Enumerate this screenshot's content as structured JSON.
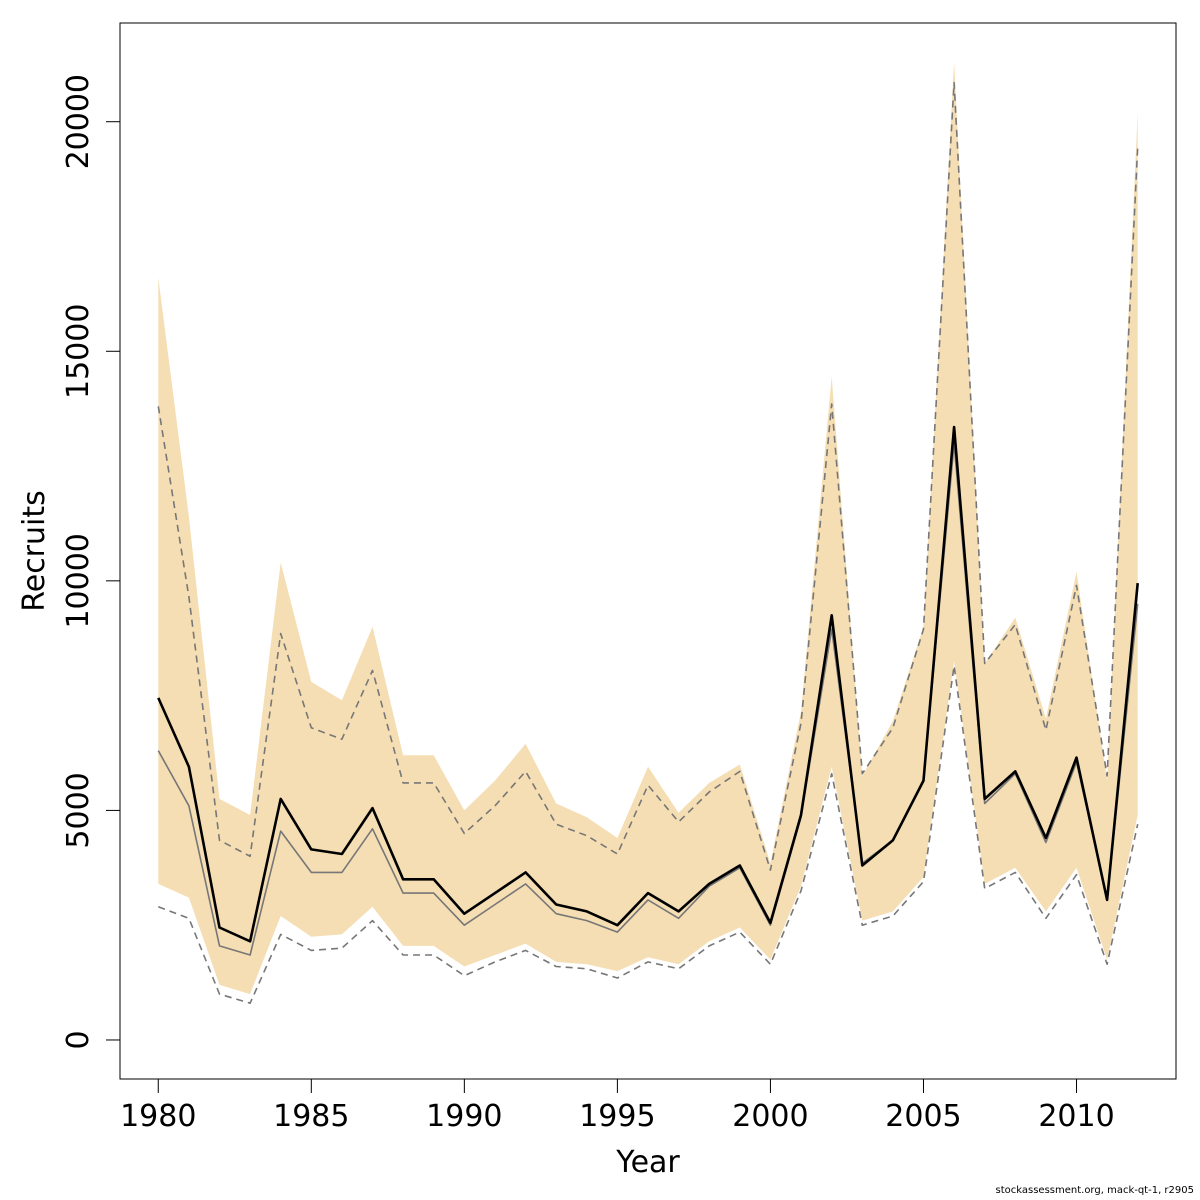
{
  "chart_data": {
    "type": "line",
    "xlabel": "Year",
    "ylabel": "Recruits",
    "xlim": [
      1978.75,
      2013.25
    ],
    "ylim": [
      -850,
      22150
    ],
    "x_ticks": [
      "1980",
      "1985",
      "1990",
      "1995",
      "2000",
      "2005",
      "2010"
    ],
    "y_ticks": [
      "0",
      "5000",
      "10000",
      "15000",
      "20000"
    ],
    "x": [
      1980,
      1981,
      1982,
      1983,
      1984,
      1985,
      1986,
      1987,
      1988,
      1989,
      1990,
      1991,
      1992,
      1993,
      1994,
      1995,
      1996,
      1997,
      1998,
      1999,
      2000,
      2001,
      2002,
      2003,
      2004,
      2005,
      2006,
      2007,
      2008,
      2009,
      2010,
      2011,
      2012
    ],
    "band": {
      "name": "confidence band",
      "upper": [
        16600,
        11400,
        5250,
        4900,
        10400,
        7800,
        7400,
        9000,
        6200,
        6200,
        5000,
        5650,
        6450,
        5150,
        4850,
        4400,
        5950,
        4950,
        5600,
        6000,
        3850,
        7150,
        14450,
        5750,
        6950,
        9000,
        21300,
        8200,
        9200,
        7000,
        10200,
        5650,
        20200
      ],
      "lower": [
        3400,
        3100,
        1200,
        1000,
        2700,
        2250,
        2300,
        2900,
        2050,
        2050,
        1600,
        1850,
        2100,
        1700,
        1650,
        1500,
        1800,
        1650,
        2150,
        2450,
        1750,
        3350,
        5950,
        2600,
        2800,
        3550,
        8250,
        3400,
        3750,
        2800,
        3750,
        1750,
        4900
      ]
    },
    "series": [
      {
        "name": "estimate",
        "style": "solid-black",
        "values": [
          7450,
          5950,
          2450,
          2150,
          5250,
          4150,
          4050,
          5050,
          3500,
          3500,
          2750,
          3200,
          3650,
          2950,
          2800,
          2500,
          3200,
          2800,
          3400,
          3800,
          2550,
          4900,
          9250,
          3800,
          4350,
          5650,
          13350,
          5250,
          5850,
          4400,
          6150,
          3050,
          9950
        ]
      },
      {
        "name": "base",
        "style": "solid-grey",
        "values": [
          6300,
          5100,
          2050,
          1850,
          4550,
          3650,
          3650,
          4600,
          3200,
          3200,
          2500,
          2950,
          3400,
          2750,
          2600,
          2350,
          3050,
          2650,
          3350,
          3750,
          2500,
          4850,
          8950,
          3850,
          4350,
          5650,
          13000,
          5150,
          5800,
          4300,
          6050,
          3050,
          9500
        ]
      },
      {
        "name": "upper",
        "style": "dashed-grey",
        "values": [
          13800,
          9650,
          4350,
          4000,
          8850,
          6800,
          6550,
          8050,
          5600,
          5600,
          4500,
          5100,
          5850,
          4700,
          4450,
          4050,
          5550,
          4750,
          5400,
          5850,
          3700,
          6900,
          13850,
          5800,
          6800,
          8950,
          20850,
          8200,
          9050,
          6750,
          9900,
          5750,
          19450
        ]
      },
      {
        "name": "lower",
        "style": "dashed-grey",
        "values": [
          2900,
          2650,
          1000,
          800,
          2300,
          1950,
          2000,
          2600,
          1850,
          1850,
          1400,
          1700,
          1950,
          1600,
          1550,
          1350,
          1700,
          1550,
          2050,
          2350,
          1650,
          3250,
          5800,
          2500,
          2700,
          3450,
          8150,
          3300,
          3650,
          2650,
          3600,
          1650,
          4700
        ]
      }
    ],
    "colors": {
      "band": "#f5deb3",
      "estimate": "#000000",
      "base": "#777777",
      "dashed": "#777777"
    }
  },
  "footer": "stockassessment.org, mack-qt-1, r2905"
}
